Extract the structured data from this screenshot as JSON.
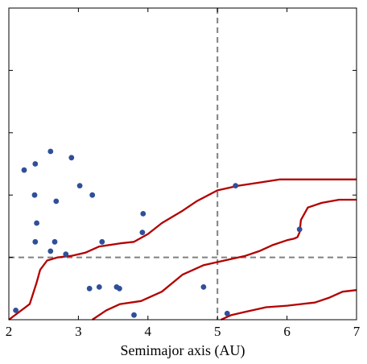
{
  "chart_data": {
    "type": "scatter",
    "title": "",
    "xlabel": "Semimajor axis (AU)",
    "ylabel": "",
    "xlim": [
      2,
      7
    ],
    "ylim": [
      0,
      10
    ],
    "x_ticks": [
      2,
      3,
      4,
      5,
      6,
      7
    ],
    "x_tick_labels": [
      "2",
      "3",
      "4",
      "5",
      "6",
      "7"
    ],
    "y_ticks": [
      2,
      4,
      6,
      8
    ],
    "grid": false,
    "legend": "none",
    "reference_lines": [
      {
        "orientation": "vertical",
        "value": 5.0,
        "color": "#808080",
        "style": "dashed"
      },
      {
        "orientation": "horizontal",
        "value": 2.0,
        "color": "#808080",
        "style": "dashed"
      }
    ],
    "points": {
      "color": "#2f4f99",
      "x": [
        2.1,
        2.22,
        2.38,
        2.4,
        2.37,
        2.38,
        2.6,
        2.6,
        2.66,
        2.68,
        2.82,
        2.9,
        3.02,
        3.16,
        3.2,
        3.3,
        3.34,
        3.55,
        3.59,
        3.8,
        3.92,
        3.93,
        4.8,
        5.14,
        5.26,
        6.18
      ],
      "y": [
        0.3,
        4.8,
        2.5,
        3.1,
        4.0,
        5.0,
        2.2,
        5.4,
        2.5,
        3.8,
        2.1,
        5.2,
        4.3,
        1.0,
        4.0,
        1.05,
        2.5,
        1.05,
        1.0,
        0.15,
        2.8,
        3.4,
        1.05,
        0.2,
        4.3,
        2.9
      ]
    },
    "series": [
      {
        "color": "#b30000",
        "x": [
          2.0,
          2.3,
          2.4,
          2.45,
          2.55,
          2.7,
          2.9,
          3.1,
          3.3,
          3.6,
          3.8,
          4.0,
          4.2,
          4.5,
          4.7,
          5.0,
          5.3,
          5.6,
          5.9,
          6.1,
          6.3,
          6.6,
          7.0
        ],
        "y": [
          0.0,
          0.5,
          1.2,
          1.6,
          1.9,
          2.0,
          2.05,
          2.15,
          2.35,
          2.45,
          2.5,
          2.75,
          3.1,
          3.5,
          3.8,
          4.15,
          4.3,
          4.4,
          4.5,
          4.5,
          4.5,
          4.5,
          4.5
        ]
      },
      {
        "color": "#b30000",
        "x": [
          3.2,
          3.4,
          3.6,
          3.9,
          4.2,
          4.5,
          4.8,
          5.1,
          5.4,
          5.6,
          5.8,
          6.0,
          6.1,
          6.15,
          6.18,
          6.2,
          6.3,
          6.5,
          6.75,
          7.0
        ],
        "y": [
          0.0,
          0.3,
          0.5,
          0.6,
          0.9,
          1.45,
          1.75,
          1.9,
          2.05,
          2.2,
          2.4,
          2.55,
          2.6,
          2.65,
          2.8,
          3.2,
          3.6,
          3.75,
          3.85,
          3.85
        ]
      },
      {
        "color": "#b30000",
        "x": [
          5.05,
          5.2,
          5.4,
          5.7,
          6.0,
          6.2,
          6.4,
          6.6,
          6.8,
          7.0
        ],
        "y": [
          0.0,
          0.15,
          0.25,
          0.4,
          0.45,
          0.5,
          0.55,
          0.7,
          0.9,
          0.95
        ]
      }
    ]
  }
}
